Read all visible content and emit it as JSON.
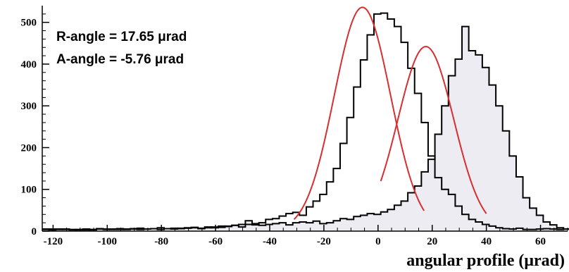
{
  "chart_data": {
    "type": "histogram",
    "title": "",
    "xlabel": "angular profile (μrad)",
    "ylabel": "",
    "xlim": [
      -124,
      70
    ],
    "ylim": [
      0,
      540
    ],
    "bin_width": 2.5,
    "x_ticks": [
      -120,
      -100,
      -80,
      -60,
      -40,
      -20,
      0,
      20,
      40,
      60
    ],
    "x_tick_labels": [
      "-120",
      "-100",
      "-80",
      "-60",
      "-40",
      "-20",
      "0",
      "20",
      "40",
      "60"
    ],
    "y_ticks": [
      0,
      100,
      200,
      300,
      400,
      500
    ],
    "y_tick_labels": [
      "0",
      "100",
      "200",
      "300",
      "400",
      "500"
    ],
    "annotations": [
      "R-angle = 17.65 μrad",
      "A-angle = -5.76 μrad"
    ],
    "grid": false,
    "series": [
      {
        "bin_start": -124,
        "fill": "none",
        "stroke": "#000000",
        "values": [
          5,
          5,
          4,
          5,
          3,
          4,
          3,
          4,
          5,
          5,
          4,
          4,
          5,
          6,
          4,
          5,
          6,
          4,
          6,
          7,
          6,
          7,
          8,
          6,
          8,
          10,
          9,
          12,
          14,
          10,
          16,
          15,
          20,
          28,
          30,
          36,
          42,
          45,
          38,
          58,
          72,
          88,
          118,
          150,
          210,
          272,
          345,
          410,
          470,
          520,
          522,
          508,
          490,
          452,
          390,
          330,
          260,
          180,
          128,
          100,
          88,
          60,
          40,
          28,
          22,
          16,
          12,
          8,
          6,
          5,
          7,
          4,
          4,
          5,
          6,
          5,
          4,
          5
        ]
      },
      {
        "bin_start": -124,
        "fill": "#ececf2",
        "stroke": "#000000",
        "values": [
          4,
          3,
          5,
          4,
          4,
          3,
          5,
          3,
          6,
          4,
          5,
          6,
          4,
          5,
          7,
          5,
          6,
          8,
          6,
          5,
          7,
          8,
          9,
          7,
          10,
          8,
          12,
          11,
          14,
          16,
          25,
          18,
          14,
          16,
          18,
          20,
          15,
          20,
          22,
          20,
          24,
          18,
          20,
          25,
          30,
          28,
          35,
          38,
          42,
          40,
          46,
          52,
          62,
          72,
          92,
          108,
          142,
          172,
          232,
          300,
          372,
          412,
          490,
          432,
          422,
          392,
          350,
          300,
          240,
          180,
          130,
          80,
          55,
          38,
          22,
          15,
          8,
          5
        ]
      }
    ],
    "fits": [
      {
        "type": "gaussian",
        "amplitude": 536,
        "mean": -5.76,
        "sigma": 10.4,
        "x_range": [
          -31,
          17
        ],
        "color": "#d62f2f"
      },
      {
        "type": "gaussian",
        "amplitude": 442,
        "mean": 17.65,
        "sigma": 10.3,
        "x_range": [
          1,
          40
        ],
        "color": "#d62f2f"
      }
    ]
  }
}
